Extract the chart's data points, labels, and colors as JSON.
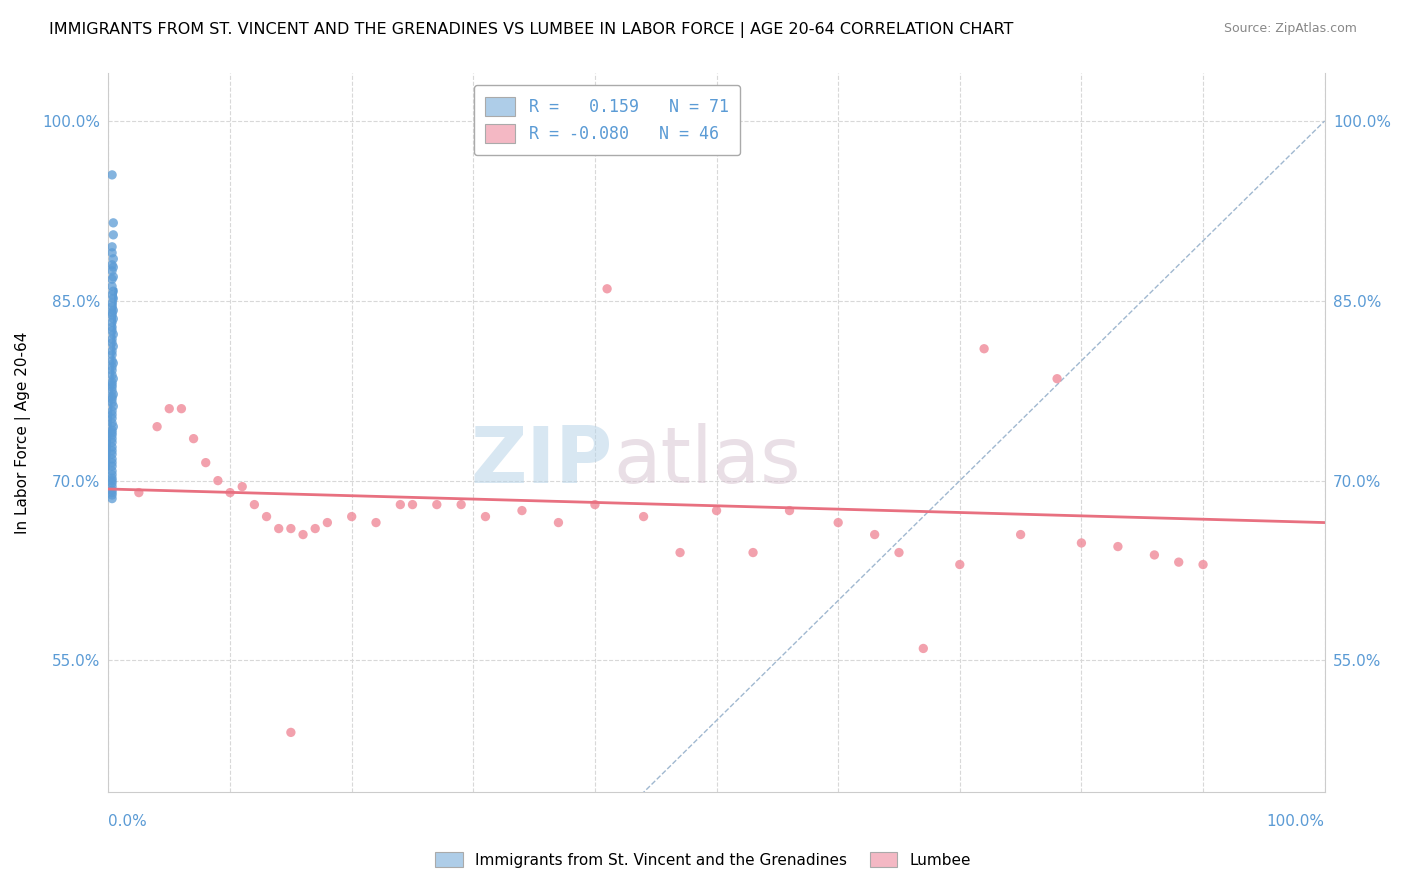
{
  "title": "IMMIGRANTS FROM ST. VINCENT AND THE GRENADINES VS LUMBEE IN LABOR FORCE | AGE 20-64 CORRELATION CHART",
  "source": "Source: ZipAtlas.com",
  "ylabel": "In Labor Force | Age 20-64",
  "xlim": [
    0.0,
    1.0
  ],
  "ylim": [
    0.44,
    1.04
  ],
  "yticks": [
    0.55,
    0.7,
    0.85,
    1.0
  ],
  "ytick_labels": [
    "55.0%",
    "70.0%",
    "85.0%",
    "100.0%"
  ],
  "blue_R": 0.159,
  "blue_N": 71,
  "pink_R": -0.08,
  "pink_N": 46,
  "blue_color": "#aecde8",
  "pink_color": "#f4b8c4",
  "blue_scatter_color": "#5b9bd5",
  "pink_scatter_color": "#f0919f",
  "legend_label_blue": "Immigrants from St. Vincent and the Grenadines",
  "legend_label_pink": "Lumbee",
  "watermark_zip": "ZIP",
  "watermark_atlas": "atlas",
  "diag_line_color": "#a0b8d0",
  "pink_trend_color": "#e87080",
  "grid_color": "#d8d8d8",
  "blue_x": [
    0.003,
    0.004,
    0.004,
    0.003,
    0.003,
    0.004,
    0.003,
    0.004,
    0.003,
    0.004,
    0.003,
    0.003,
    0.004,
    0.003,
    0.004,
    0.003,
    0.003,
    0.004,
    0.003,
    0.003,
    0.004,
    0.003,
    0.003,
    0.003,
    0.004,
    0.003,
    0.003,
    0.004,
    0.003,
    0.003,
    0.003,
    0.004,
    0.003,
    0.003,
    0.003,
    0.004,
    0.003,
    0.003,
    0.003,
    0.003,
    0.004,
    0.003,
    0.003,
    0.003,
    0.004,
    0.003,
    0.003,
    0.003,
    0.003,
    0.004,
    0.003,
    0.003,
    0.003,
    0.003,
    0.003,
    0.003,
    0.003,
    0.003,
    0.003,
    0.003,
    0.003,
    0.003,
    0.003,
    0.003,
    0.003,
    0.003,
    0.003,
    0.003,
    0.003,
    0.003,
    0.003
  ],
  "blue_y": [
    0.955,
    0.915,
    0.905,
    0.895,
    0.89,
    0.885,
    0.88,
    0.878,
    0.875,
    0.87,
    0.868,
    0.862,
    0.858,
    0.855,
    0.852,
    0.848,
    0.845,
    0.842,
    0.84,
    0.838,
    0.835,
    0.832,
    0.828,
    0.825,
    0.822,
    0.818,
    0.815,
    0.812,
    0.808,
    0.805,
    0.8,
    0.798,
    0.795,
    0.792,
    0.788,
    0.785,
    0.782,
    0.78,
    0.778,
    0.775,
    0.772,
    0.77,
    0.768,
    0.765,
    0.762,
    0.758,
    0.755,
    0.752,
    0.748,
    0.745,
    0.742,
    0.74,
    0.738,
    0.735,
    0.732,
    0.728,
    0.725,
    0.722,
    0.718,
    0.715,
    0.712,
    0.708,
    0.705,
    0.702,
    0.7,
    0.698,
    0.695,
    0.692,
    0.69,
    0.688,
    0.685
  ],
  "pink_x": [
    0.025,
    0.04,
    0.05,
    0.06,
    0.07,
    0.08,
    0.09,
    0.1,
    0.11,
    0.12,
    0.13,
    0.14,
    0.15,
    0.16,
    0.17,
    0.18,
    0.2,
    0.22,
    0.24,
    0.25,
    0.27,
    0.29,
    0.31,
    0.34,
    0.37,
    0.4,
    0.41,
    0.44,
    0.47,
    0.5,
    0.53,
    0.56,
    0.6,
    0.63,
    0.65,
    0.67,
    0.7,
    0.72,
    0.75,
    0.78,
    0.8,
    0.83,
    0.86,
    0.88,
    0.9,
    0.15
  ],
  "pink_y": [
    0.69,
    0.745,
    0.76,
    0.76,
    0.735,
    0.715,
    0.7,
    0.69,
    0.695,
    0.68,
    0.67,
    0.66,
    0.66,
    0.655,
    0.66,
    0.665,
    0.67,
    0.665,
    0.68,
    0.68,
    0.68,
    0.68,
    0.67,
    0.675,
    0.665,
    0.68,
    0.86,
    0.67,
    0.64,
    0.675,
    0.64,
    0.675,
    0.665,
    0.655,
    0.64,
    0.56,
    0.63,
    0.81,
    0.655,
    0.785,
    0.648,
    0.645,
    0.638,
    0.632,
    0.63,
    0.49
  ],
  "pink_trend_start_y": 0.693,
  "pink_trend_end_y": 0.665
}
